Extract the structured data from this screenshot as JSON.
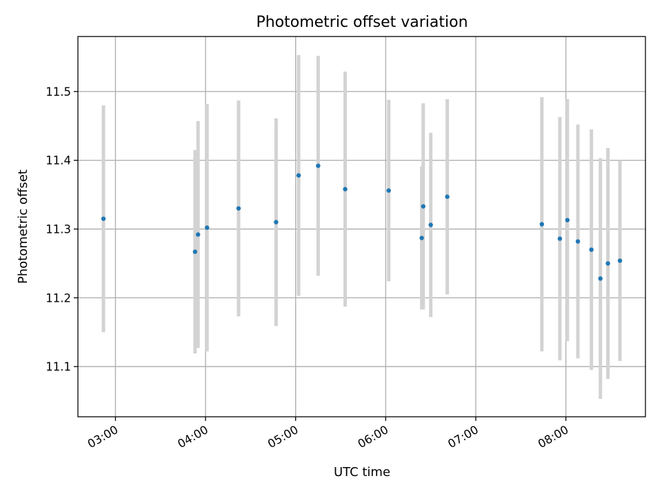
{
  "chart_data": {
    "type": "scatter",
    "title": "Photometric offset variation",
    "xlabel": "UTC time",
    "ylabel": "Photometric offset",
    "x_axis_type": "time",
    "xlim": [
      "02:35",
      "08:53"
    ],
    "ylim": [
      11.027,
      11.58
    ],
    "x_ticks": [
      "03:00",
      "04:00",
      "05:00",
      "06:00",
      "07:00",
      "08:00"
    ],
    "y_ticks": [
      11.1,
      11.2,
      11.3,
      11.4,
      11.5
    ],
    "y_tick_labels": [
      "11.1",
      "11.2",
      "11.3",
      "11.4",
      "11.5"
    ],
    "grid": true,
    "legend": "none",
    "marker_color": "#1f77b4",
    "errorbar_color": "#d3d3d3",
    "points": [
      {
        "x": "02:52",
        "y": 11.315,
        "err": 0.165
      },
      {
        "x": "03:53",
        "y": 11.267,
        "err": 0.148
      },
      {
        "x": "03:55",
        "y": 11.292,
        "err": 0.165
      },
      {
        "x": "04:01",
        "y": 11.302,
        "err": 0.18
      },
      {
        "x": "04:22",
        "y": 11.33,
        "err": 0.157
      },
      {
        "x": "04:47",
        "y": 11.31,
        "err": 0.151
      },
      {
        "x": "05:02",
        "y": 11.378,
        "err": 0.175
      },
      {
        "x": "05:15",
        "y": 11.392,
        "err": 0.16
      },
      {
        "x": "05:33",
        "y": 11.358,
        "err": 0.171
      },
      {
        "x": "06:02",
        "y": 11.356,
        "err": 0.132
      },
      {
        "x": "06:24",
        "y": 11.287,
        "err": 0.104
      },
      {
        "x": "06:25",
        "y": 11.333,
        "err": 0.15
      },
      {
        "x": "06:30",
        "y": 11.306,
        "err": 0.134
      },
      {
        "x": "06:41",
        "y": 11.347,
        "err": 0.142
      },
      {
        "x": "07:44",
        "y": 11.307,
        "err": 0.185
      },
      {
        "x": "07:56",
        "y": 11.286,
        "err": 0.177
      },
      {
        "x": "08:01",
        "y": 11.313,
        "err": 0.176
      },
      {
        "x": "08:08",
        "y": 11.282,
        "err": 0.17
      },
      {
        "x": "08:17",
        "y": 11.27,
        "err": 0.175
      },
      {
        "x": "08:23",
        "y": 11.228,
        "err": 0.175
      },
      {
        "x": "08:28",
        "y": 11.25,
        "err": 0.168
      },
      {
        "x": "08:36",
        "y": 11.254,
        "err": 0.146
      }
    ]
  }
}
